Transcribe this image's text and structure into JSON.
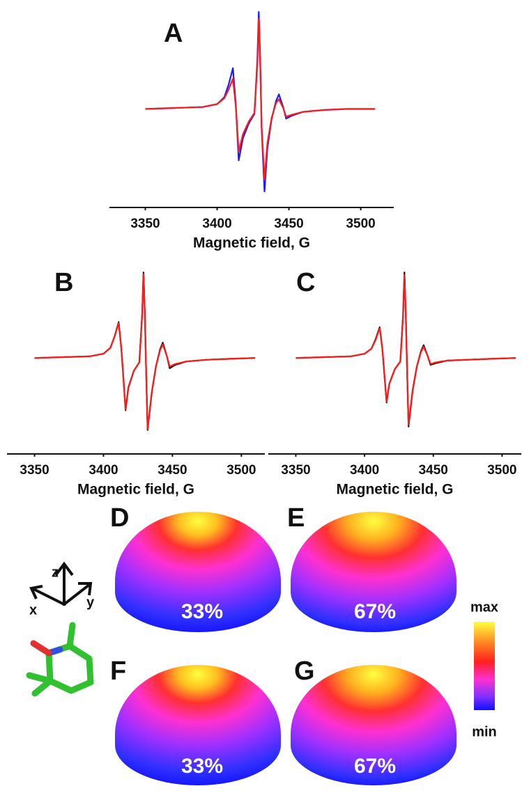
{
  "chart_data": [
    {
      "type": "line",
      "label": "A",
      "xlabel": "Magnetic field, G",
      "xlim": [
        3325,
        3523
      ],
      "ylim": [
        -0.9,
        1.05
      ],
      "xticks": [
        3350,
        3400,
        3450,
        3500
      ],
      "x": [
        3350,
        3370,
        3390,
        3400,
        3405,
        3408,
        3411,
        3413,
        3415,
        3418,
        3422,
        3426,
        3428,
        3429,
        3430,
        3431,
        3433,
        3435,
        3438,
        3441,
        3443,
        3446,
        3448,
        3452,
        3460,
        3475,
        3490,
        3510
      ],
      "series": [
        {
          "color": "#1a1aff",
          "values": [
            0,
            0.01,
            0.02,
            0.05,
            0.12,
            0.25,
            0.42,
            0.05,
            -0.53,
            -0.3,
            -0.15,
            -0.05,
            0.5,
            1.0,
            0.5,
            -0.2,
            -0.85,
            -0.4,
            -0.1,
            0.08,
            0.15,
            0.02,
            -0.1,
            -0.07,
            -0.03,
            -0.01,
            0,
            0
          ]
        },
        {
          "color": "#ff1a1a",
          "values": [
            0,
            0.01,
            0.02,
            0.05,
            0.11,
            0.2,
            0.31,
            0.03,
            -0.44,
            -0.26,
            -0.13,
            -0.04,
            0.45,
            0.93,
            0.45,
            -0.18,
            -0.73,
            -0.35,
            -0.09,
            0.06,
            0.1,
            0.01,
            -0.08,
            -0.06,
            -0.03,
            -0.01,
            0,
            0
          ]
        }
      ]
    },
    {
      "type": "line",
      "label": "B",
      "xlabel": "Magnetic field, G",
      "xlim": [
        3330,
        3517
      ],
      "ylim": [
        -0.9,
        1.05
      ],
      "xticks": [
        3350,
        3400,
        3450,
        3500
      ],
      "x": [
        3350,
        3370,
        3390,
        3400,
        3405,
        3408,
        3411,
        3413,
        3416,
        3418,
        3422,
        3426,
        3428,
        3429,
        3430,
        3431,
        3432,
        3435,
        3438,
        3441,
        3443,
        3446,
        3448,
        3452,
        3460,
        3475,
        3490,
        3510
      ],
      "series": [
        {
          "color": "#111111",
          "values": [
            0,
            0.01,
            0.02,
            0.05,
            0.12,
            0.25,
            0.42,
            0.1,
            -0.61,
            -0.35,
            -0.15,
            -0.05,
            0.5,
            1.0,
            0.5,
            -0.2,
            -0.84,
            -0.4,
            -0.1,
            0.1,
            0.18,
            0.02,
            -0.12,
            -0.08,
            -0.04,
            -0.02,
            -0.01,
            0
          ]
        },
        {
          "color": "#ff1a1a",
          "values": [
            0,
            0.01,
            0.02,
            0.05,
            0.12,
            0.25,
            0.41,
            0.1,
            -0.6,
            -0.34,
            -0.15,
            -0.05,
            0.49,
            0.98,
            0.49,
            -0.2,
            -0.83,
            -0.4,
            -0.1,
            0.09,
            0.16,
            0.02,
            -0.1,
            -0.07,
            -0.04,
            -0.02,
            -0.01,
            0
          ]
        }
      ]
    },
    {
      "type": "line",
      "label": "C",
      "xlabel": "Magnetic field, G",
      "xlim": [
        3330,
        3514
      ],
      "ylim": [
        -0.9,
        1.05
      ],
      "xticks": [
        3350,
        3400,
        3450,
        3500
      ],
      "x": [
        3350,
        3370,
        3390,
        3400,
        3405,
        3408,
        3411,
        3413,
        3416,
        3418,
        3422,
        3426,
        3428,
        3429,
        3430,
        3431,
        3432,
        3435,
        3438,
        3441,
        3443,
        3446,
        3448,
        3452,
        3460,
        3475,
        3490,
        3510
      ],
      "series": [
        {
          "color": "#111111",
          "values": [
            0,
            0.01,
            0.02,
            0.05,
            0.11,
            0.22,
            0.36,
            0.1,
            -0.52,
            -0.3,
            -0.13,
            -0.04,
            0.5,
            1.0,
            0.5,
            -0.2,
            -0.8,
            -0.38,
            -0.1,
            0.08,
            0.15,
            0.02,
            -0.08,
            -0.06,
            -0.03,
            -0.02,
            -0.01,
            0
          ]
        },
        {
          "color": "#ff1a1a",
          "values": [
            0,
            0.01,
            0.02,
            0.05,
            0.11,
            0.21,
            0.35,
            0.1,
            -0.51,
            -0.3,
            -0.13,
            -0.04,
            0.48,
            0.97,
            0.48,
            -0.2,
            -0.78,
            -0.37,
            -0.1,
            0.07,
            0.13,
            0.02,
            -0.07,
            -0.05,
            -0.03,
            -0.02,
            -0.01,
            0
          ]
        }
      ]
    }
  ],
  "hemispheres": [
    {
      "label": "D",
      "percent": "33%"
    },
    {
      "label": "E",
      "percent": "67%"
    },
    {
      "label": "F",
      "percent": "33%"
    },
    {
      "label": "G",
      "percent": "67%"
    }
  ],
  "colorbar": {
    "max": "max",
    "min": "min"
  },
  "axes_icon": {
    "x": "x",
    "y": "y",
    "z": "z"
  }
}
